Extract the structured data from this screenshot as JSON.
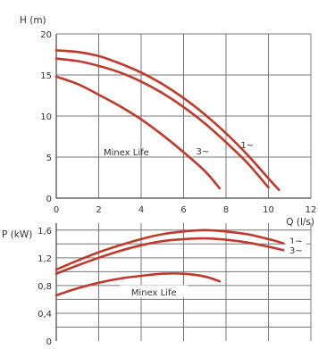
{
  "chart_data": [
    {
      "type": "line",
      "ylabel": "H (m)",
      "xlabel": "Q (l/s)",
      "xlim": [
        0,
        12
      ],
      "ylim": [
        0,
        20
      ],
      "xticks": [
        "0",
        "2",
        "4",
        "6",
        "8",
        "10",
        "12"
      ],
      "yticks": [
        "0",
        "5",
        "10",
        "15",
        "20"
      ],
      "grid": true,
      "series": [
        {
          "name": "1~",
          "x": [
            0,
            1,
            2,
            3,
            4,
            5,
            6,
            7,
            8,
            9,
            10,
            10.5
          ],
          "y": [
            18,
            17.8,
            17.3,
            16.4,
            15.3,
            13.9,
            12.2,
            10.2,
            7.9,
            5.3,
            2.4,
            1
          ]
        },
        {
          "name": "3~",
          "x": [
            0,
            1,
            2,
            3,
            4,
            5,
            6,
            7,
            8,
            9,
            10
          ],
          "y": [
            17,
            16.7,
            16.1,
            15.3,
            14.2,
            12.8,
            11.1,
            9.1,
            6.8,
            4.3,
            1.3
          ]
        },
        {
          "name": "Minex Life",
          "x": [
            0,
            1,
            2,
            3,
            4,
            5,
            6,
            7,
            7.7
          ],
          "y": [
            14.8,
            13.9,
            12.6,
            11.2,
            9.6,
            7.7,
            5.6,
            3.3,
            1.2
          ]
        }
      ],
      "annotations": [
        "Minex Life",
        "3~",
        "1~"
      ]
    },
    {
      "type": "line",
      "ylabel": "P (kW)",
      "xlim": [
        0,
        12
      ],
      "ylim": [
        0,
        1.7
      ],
      "yticks": [
        "0",
        "0,4",
        "0,8",
        "1,2",
        "1,6"
      ],
      "grid": true,
      "series": [
        {
          "name": "1~",
          "x": [
            0,
            1,
            2,
            3,
            4,
            5,
            6,
            7,
            8,
            9,
            10,
            10.7
          ],
          "y": [
            1.03,
            1.16,
            1.28,
            1.38,
            1.47,
            1.54,
            1.58,
            1.6,
            1.58,
            1.54,
            1.47,
            1.41
          ]
        },
        {
          "name": "3~",
          "x": [
            0,
            1,
            2,
            3,
            4,
            5,
            6,
            7,
            8,
            9,
            10,
            10.7
          ],
          "y": [
            0.97,
            1.09,
            1.2,
            1.3,
            1.38,
            1.44,
            1.47,
            1.48,
            1.46,
            1.42,
            1.36,
            1.31
          ]
        },
        {
          "name": "Minex Life",
          "x": [
            0,
            1,
            2,
            3,
            4,
            5,
            6,
            7,
            7.7
          ],
          "y": [
            0.66,
            0.76,
            0.84,
            0.9,
            0.94,
            0.97,
            0.97,
            0.93,
            0.86
          ]
        }
      ],
      "annotations": [
        "Minex Life",
        "1~",
        "3~"
      ]
    }
  ],
  "colors": {
    "curve": "#c0392b",
    "grid": "#777777",
    "text": "#333333"
  }
}
